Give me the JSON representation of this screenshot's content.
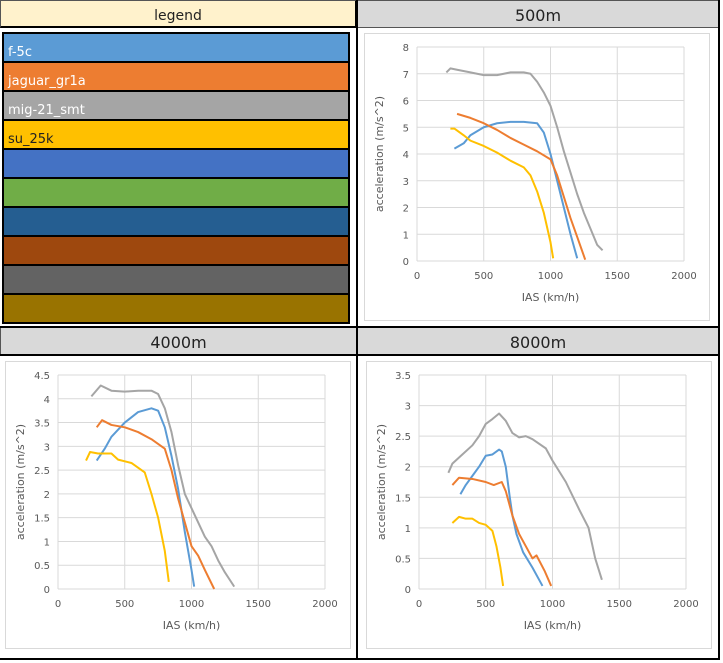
{
  "legend": {
    "title": "legend",
    "items": [
      {
        "label": "f-5c",
        "color": "#5b9bd5",
        "text_color": "#ffffff"
      },
      {
        "label": "jaguar_gr1a",
        "color": "#ed7d31",
        "text_color": "#ffffff"
      },
      {
        "label": "mig-21_smt",
        "color": "#a5a5a5",
        "text_color": "#ffffff"
      },
      {
        "label": "su_25k",
        "color": "#ffc000",
        "text_color": "#222222"
      },
      {
        "label": "",
        "color": "#4472c4"
      },
      {
        "label": "",
        "color": "#70ad47"
      },
      {
        "label": "",
        "color": "#255e91"
      },
      {
        "label": "",
        "color": "#9e480e"
      },
      {
        "label": "",
        "color": "#636363"
      },
      {
        "label": "",
        "color": "#997300"
      }
    ]
  },
  "chart_data": [
    {
      "type": "line",
      "title": "500m",
      "xlabel": "IAS (km/h)",
      "ylabel": "acceleration (m/s^2)",
      "xlim": [
        0,
        2000
      ],
      "ylim": [
        0,
        8
      ],
      "xticks": [
        0,
        500,
        1000,
        1500,
        2000
      ],
      "yticks": [
        0,
        1,
        2,
        3,
        4,
        5,
        6,
        7,
        8
      ],
      "grid": true,
      "series": [
        {
          "name": "f-5c",
          "color": "#5b9bd5",
          "points": [
            [
              280,
              4.2
            ],
            [
              350,
              4.4
            ],
            [
              400,
              4.7
            ],
            [
              500,
              5.0
            ],
            [
              600,
              5.15
            ],
            [
              700,
              5.2
            ],
            [
              800,
              5.2
            ],
            [
              900,
              5.15
            ],
            [
              950,
              4.8
            ],
            [
              1000,
              4.0
            ],
            [
              1050,
              3.0
            ],
            [
              1100,
              2.0
            ],
            [
              1150,
              1.0
            ],
            [
              1200,
              0.1
            ]
          ]
        },
        {
          "name": "jaguar_gr1a",
          "color": "#ed7d31",
          "points": [
            [
              300,
              5.5
            ],
            [
              400,
              5.35
            ],
            [
              500,
              5.15
            ],
            [
              600,
              4.9
            ],
            [
              700,
              4.6
            ],
            [
              800,
              4.35
            ],
            [
              900,
              4.1
            ],
            [
              1000,
              3.8
            ],
            [
              1050,
              3.2
            ],
            [
              1100,
              2.4
            ],
            [
              1150,
              1.6
            ],
            [
              1200,
              0.9
            ],
            [
              1260,
              0.05
            ]
          ]
        },
        {
          "name": "mig-21_smt",
          "color": "#a5a5a5",
          "points": [
            [
              220,
              7.05
            ],
            [
              250,
              7.2
            ],
            [
              300,
              7.15
            ],
            [
              400,
              7.05
            ],
            [
              500,
              6.95
            ],
            [
              600,
              6.95
            ],
            [
              700,
              7.05
            ],
            [
              800,
              7.05
            ],
            [
              850,
              7.0
            ],
            [
              900,
              6.7
            ],
            [
              950,
              6.3
            ],
            [
              1000,
              5.8
            ],
            [
              1050,
              5.0
            ],
            [
              1100,
              4.1
            ],
            [
              1150,
              3.3
            ],
            [
              1200,
              2.5
            ],
            [
              1250,
              1.8
            ],
            [
              1300,
              1.2
            ],
            [
              1350,
              0.6
            ],
            [
              1390,
              0.4
            ]
          ]
        },
        {
          "name": "su_25k",
          "color": "#ffc000",
          "points": [
            [
              250,
              4.95
            ],
            [
              280,
              4.95
            ],
            [
              350,
              4.7
            ],
            [
              400,
              4.5
            ],
            [
              500,
              4.3
            ],
            [
              600,
              4.05
            ],
            [
              700,
              3.75
            ],
            [
              800,
              3.5
            ],
            [
              850,
              3.2
            ],
            [
              900,
              2.6
            ],
            [
              950,
              1.8
            ],
            [
              1000,
              0.7
            ],
            [
              1020,
              0.1
            ]
          ]
        }
      ]
    },
    {
      "type": "line",
      "title": "4000m",
      "xlabel": "IAS (km/h)",
      "ylabel": "acceleration (m/s^2)",
      "xlim": [
        0,
        2000
      ],
      "ylim": [
        0,
        4.5
      ],
      "xticks": [
        0,
        500,
        1000,
        1500,
        2000
      ],
      "yticks": [
        0,
        0.5,
        1,
        1.5,
        2,
        2.5,
        3,
        3.5,
        4,
        4.5
      ],
      "grid": true,
      "series": [
        {
          "name": "f-5c",
          "color": "#5b9bd5",
          "points": [
            [
              290,
              2.7
            ],
            [
              350,
              2.95
            ],
            [
              400,
              3.2
            ],
            [
              500,
              3.5
            ],
            [
              600,
              3.72
            ],
            [
              700,
              3.8
            ],
            [
              750,
              3.75
            ],
            [
              800,
              3.4
            ],
            [
              850,
              2.8
            ],
            [
              900,
              2.1
            ],
            [
              950,
              1.2
            ],
            [
              1000,
              0.4
            ],
            [
              1020,
              0.05
            ]
          ]
        },
        {
          "name": "jaguar_gr1a",
          "color": "#ed7d31",
          "points": [
            [
              290,
              3.4
            ],
            [
              330,
              3.55
            ],
            [
              400,
              3.45
            ],
            [
              500,
              3.4
            ],
            [
              600,
              3.3
            ],
            [
              700,
              3.15
            ],
            [
              800,
              2.95
            ],
            [
              850,
              2.5
            ],
            [
              900,
              1.9
            ],
            [
              950,
              1.4
            ],
            [
              1000,
              0.9
            ],
            [
              1050,
              0.7
            ],
            [
              1100,
              0.4
            ],
            [
              1170,
              0.0
            ]
          ]
        },
        {
          "name": "mig-21_smt",
          "color": "#a5a5a5",
          "points": [
            [
              250,
              4.05
            ],
            [
              320,
              4.28
            ],
            [
              400,
              4.17
            ],
            [
              500,
              4.15
            ],
            [
              600,
              4.17
            ],
            [
              700,
              4.17
            ],
            [
              750,
              4.1
            ],
            [
              800,
              3.8
            ],
            [
              850,
              3.3
            ],
            [
              900,
              2.6
            ],
            [
              950,
              2.0
            ],
            [
              1000,
              1.7
            ],
            [
              1050,
              1.4
            ],
            [
              1100,
              1.1
            ],
            [
              1150,
              0.9
            ],
            [
              1200,
              0.6
            ],
            [
              1250,
              0.35
            ],
            [
              1320,
              0.05
            ]
          ]
        },
        {
          "name": "su_25k",
          "color": "#ffc000",
          "points": [
            [
              210,
              2.7
            ],
            [
              240,
              2.88
            ],
            [
              300,
              2.85
            ],
            [
              400,
              2.85
            ],
            [
              450,
              2.72
            ],
            [
              550,
              2.65
            ],
            [
              650,
              2.45
            ],
            [
              700,
              2.0
            ],
            [
              750,
              1.5
            ],
            [
              800,
              0.8
            ],
            [
              830,
              0.15
            ]
          ]
        }
      ]
    },
    {
      "type": "line",
      "title": "8000m",
      "xlabel": "IAS (km/h)",
      "ylabel": "acceleration (m/s^2)",
      "xlim": [
        0,
        2000
      ],
      "ylim": [
        0,
        3.5
      ],
      "xticks": [
        0,
        500,
        1000,
        1500,
        2000
      ],
      "yticks": [
        0,
        0.5,
        1,
        1.5,
        2,
        2.5,
        3,
        3.5
      ],
      "grid": true,
      "series": [
        {
          "name": "f-5c",
          "color": "#5b9bd5",
          "points": [
            [
              310,
              1.55
            ],
            [
              350,
              1.7
            ],
            [
              400,
              1.85
            ],
            [
              450,
              2.0
            ],
            [
              500,
              2.18
            ],
            [
              550,
              2.2
            ],
            [
              600,
              2.28
            ],
            [
              620,
              2.25
            ],
            [
              650,
              2.0
            ],
            [
              680,
              1.5
            ],
            [
              700,
              1.2
            ],
            [
              730,
              0.9
            ],
            [
              780,
              0.6
            ],
            [
              850,
              0.35
            ],
            [
              900,
              0.15
            ],
            [
              925,
              0.05
            ]
          ]
        },
        {
          "name": "jaguar_gr1a",
          "color": "#ed7d31",
          "points": [
            [
              250,
              1.7
            ],
            [
              300,
              1.82
            ],
            [
              400,
              1.8
            ],
            [
              500,
              1.75
            ],
            [
              560,
              1.7
            ],
            [
              620,
              1.75
            ],
            [
              650,
              1.6
            ],
            [
              700,
              1.2
            ],
            [
              750,
              0.9
            ],
            [
              800,
              0.7
            ],
            [
              850,
              0.5
            ],
            [
              880,
              0.55
            ],
            [
              940,
              0.3
            ],
            [
              990,
              0.05
            ]
          ]
        },
        {
          "name": "mig-21_smt",
          "color": "#a5a5a5",
          "points": [
            [
              220,
              1.9
            ],
            [
              250,
              2.05
            ],
            [
              300,
              2.15
            ],
            [
              400,
              2.35
            ],
            [
              450,
              2.5
            ],
            [
              500,
              2.7
            ],
            [
              550,
              2.78
            ],
            [
              600,
              2.87
            ],
            [
              650,
              2.75
            ],
            [
              700,
              2.55
            ],
            [
              750,
              2.48
            ],
            [
              800,
              2.5
            ],
            [
              850,
              2.45
            ],
            [
              950,
              2.3
            ],
            [
              1000,
              2.1
            ],
            [
              1100,
              1.75
            ],
            [
              1200,
              1.3
            ],
            [
              1270,
              1.0
            ],
            [
              1320,
              0.5
            ],
            [
              1370,
              0.15
            ]
          ]
        },
        {
          "name": "su_25k",
          "color": "#ffc000",
          "points": [
            [
              250,
              1.08
            ],
            [
              300,
              1.18
            ],
            [
              350,
              1.15
            ],
            [
              400,
              1.15
            ],
            [
              450,
              1.08
            ],
            [
              500,
              1.05
            ],
            [
              550,
              0.95
            ],
            [
              580,
              0.7
            ],
            [
              610,
              0.35
            ],
            [
              630,
              0.05
            ]
          ]
        }
      ]
    }
  ]
}
